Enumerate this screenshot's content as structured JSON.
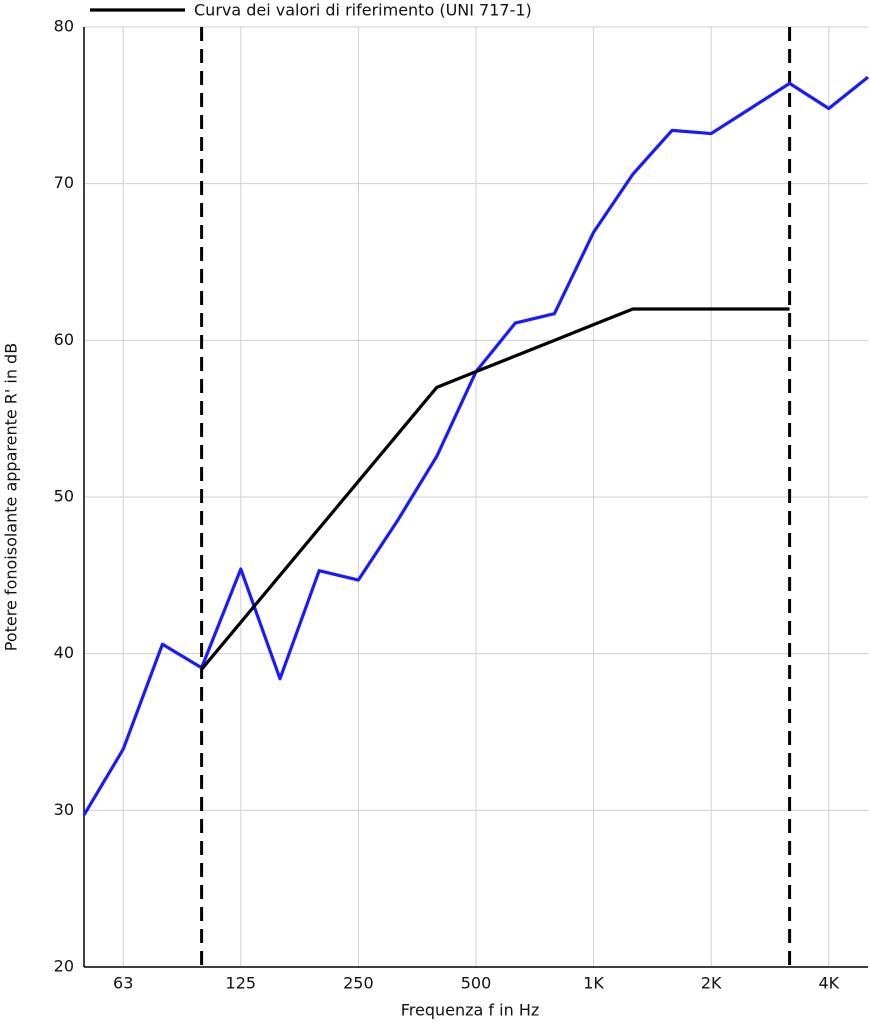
{
  "chart_data": {
    "type": "line",
    "legend_text": "Curva dei valori di riferimento (UNI 717-1)",
    "x_label": "Frequenza f in Hz",
    "y_label": "Potere fonoisolante apparente R' in dB",
    "categories": [
      null,
      "63",
      null,
      null,
      "125",
      null,
      null,
      "250",
      null,
      null,
      "500",
      null,
      null,
      "1K",
      null,
      null,
      "2K",
      null,
      null,
      "4K",
      null
    ],
    "series": [
      {
        "color": "#1a1aff",
        "values": [
          29.7,
          33.9,
          40.6,
          39.1,
          45.4,
          38.4,
          45.3,
          44.7,
          48.5,
          52.6,
          58.0,
          61.1,
          61.7,
          66.9,
          70.6,
          73.4,
          73.2,
          74.8,
          76.4,
          74.8,
          76.8
        ]
      },
      {
        "name": "Curva dei valori di riferimento (UNI 717-1)",
        "color": "#000000",
        "values": [
          null,
          null,
          null,
          39,
          42,
          45,
          48,
          51,
          54,
          57,
          58,
          59,
          60,
          61,
          62,
          62,
          62,
          62,
          62,
          null,
          null
        ]
      }
    ],
    "ylim": [
      20,
      80
    ],
    "yticks": [
      20,
      30,
      40,
      50,
      60,
      70,
      80
    ],
    "grid": true
  }
}
